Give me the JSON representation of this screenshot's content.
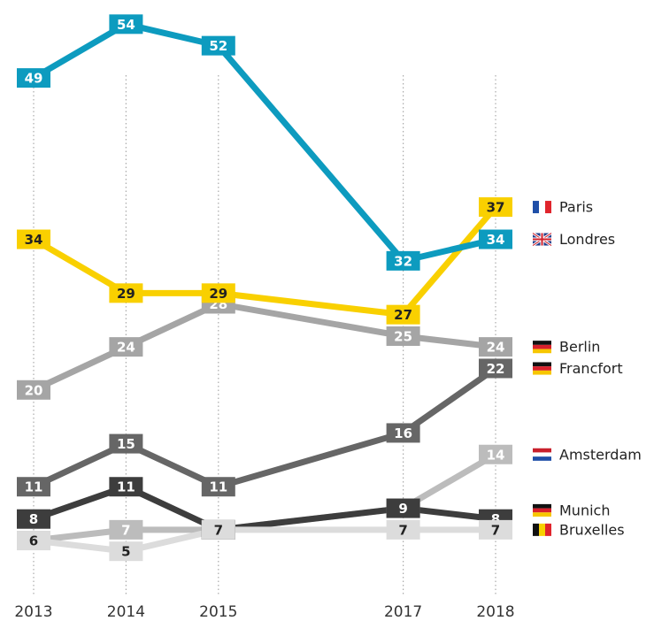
{
  "chart_data": {
    "type": "line",
    "x": [
      2013,
      2014,
      2015,
      2017,
      2018
    ],
    "xlim": [
      2013,
      2018
    ],
    "xticks": [
      2013,
      2014,
      2015,
      2017,
      2018
    ],
    "ylim": [
      0,
      56
    ],
    "grid": true,
    "series": [
      {
        "name": "Amsterdam",
        "color": "#bcbcbc",
        "values": [
          6,
          7,
          7,
          9,
          14
        ]
      },
      {
        "name": "Munich",
        "color": "#3d3d3d",
        "values": [
          8,
          11,
          7,
          9,
          8
        ]
      },
      {
        "name": "Bruxelles",
        "color": "#dcdcdc",
        "values": [
          6,
          5,
          7,
          7,
          7
        ]
      },
      {
        "name": "Francfort",
        "color": "#666666",
        "values": [
          11,
          15,
          11,
          16,
          22
        ]
      },
      {
        "name": "Berlin",
        "color": "#a5a5a5",
        "values": [
          20,
          24,
          28,
          25,
          24
        ]
      },
      {
        "name": "Paris",
        "color": "#f9d000",
        "values": [
          34,
          29,
          29,
          27,
          37
        ]
      },
      {
        "name": "Londres",
        "color": "#0d9bbf",
        "values": [
          49,
          54,
          52,
          32,
          34
        ]
      }
    ]
  }
}
